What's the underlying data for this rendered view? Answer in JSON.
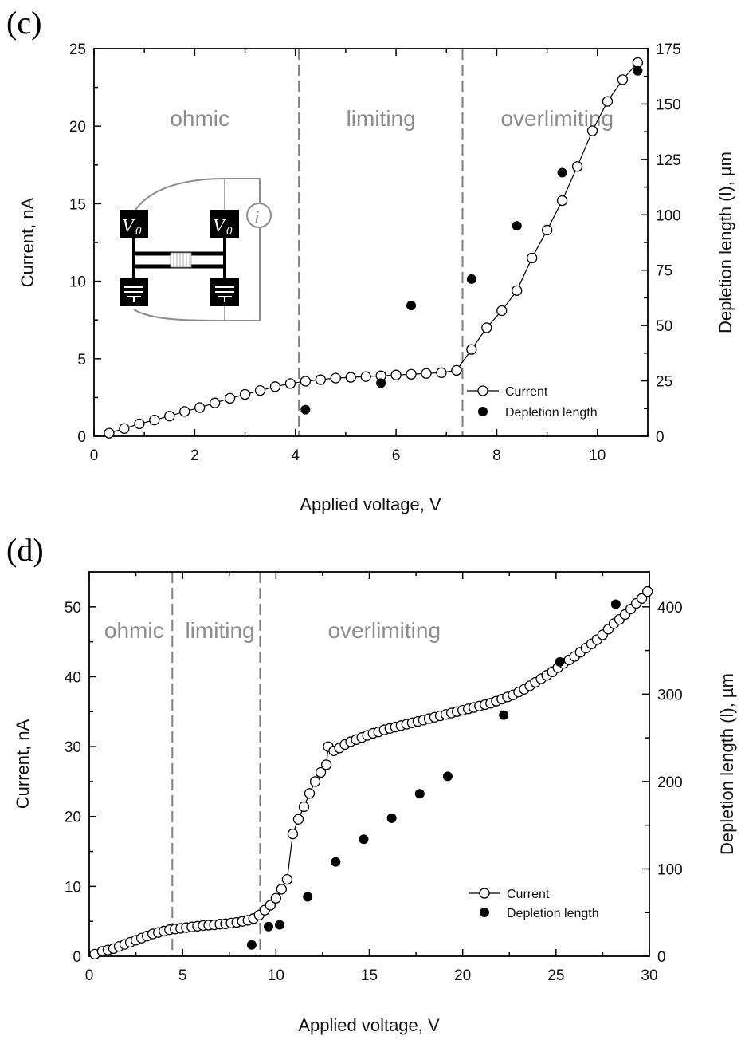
{
  "figure": {
    "panels": [
      "(c)",
      "(d)"
    ]
  },
  "inset": {
    "source_label": "V",
    "source_subscript": "0",
    "meter_label": "i"
  },
  "chart_data": [
    {
      "type": "line",
      "panel": "(c)",
      "xlabel": "Applied voltage, V",
      "ylabel": "Current, nA",
      "y2label": "Depletion length (l), µm",
      "xlim": [
        0,
        11
      ],
      "ylim": [
        0,
        25
      ],
      "y2lim": [
        0,
        175
      ],
      "xticks": [
        0,
        2,
        4,
        6,
        8,
        10
      ],
      "yticks": [
        0,
        5,
        10,
        15,
        20,
        25
      ],
      "y2ticks": [
        0,
        25,
        50,
        75,
        100,
        125,
        150,
        175
      ],
      "grid": false,
      "legend_position": "bottom-right",
      "regions": [
        {
          "label": "ohmic",
          "x": 2.1
        },
        {
          "label": "limiting",
          "x": 5.7
        },
        {
          "label": "overlimiting",
          "x": 9.2
        }
      ],
      "dividers": [
        4.07,
        7.32
      ],
      "series": [
        {
          "name": "Current",
          "axis": "left",
          "style": "open-circle-line",
          "x": [
            0.3,
            0.6,
            0.9,
            1.2,
            1.5,
            1.8,
            2.1,
            2.4,
            2.7,
            3.0,
            3.3,
            3.6,
            3.9,
            4.2,
            4.5,
            4.8,
            5.1,
            5.4,
            5.7,
            6.0,
            6.3,
            6.6,
            6.9,
            7.2,
            7.5,
            7.8,
            8.1,
            8.4,
            8.7,
            9.0,
            9.3,
            9.6,
            9.9,
            10.2,
            10.5,
            10.8
          ],
          "y": [
            0.2,
            0.5,
            0.8,
            1.05,
            1.3,
            1.6,
            1.85,
            2.15,
            2.45,
            2.7,
            2.95,
            3.2,
            3.4,
            3.55,
            3.65,
            3.75,
            3.8,
            3.85,
            3.9,
            3.95,
            4.0,
            4.05,
            4.1,
            4.25,
            5.6,
            7.0,
            8.1,
            9.4,
            11.5,
            13.3,
            15.2,
            17.4,
            19.7,
            21.6,
            23.0,
            24.1
          ]
        },
        {
          "name": "Depletion length",
          "axis": "right",
          "style": "filled-circle",
          "x": [
            4.2,
            5.7,
            6.3,
            7.5,
            8.4,
            9.3,
            10.8
          ],
          "y": [
            12,
            24,
            59,
            71,
            95,
            119,
            165
          ]
        }
      ]
    },
    {
      "type": "line",
      "panel": "(d)",
      "xlabel": "Applied voltage, V",
      "ylabel": "Current, nA",
      "y2label": "Depletion length (l), µm",
      "xlim": [
        0,
        30
      ],
      "ylim": [
        0,
        55
      ],
      "y2lim": [
        0,
        440
      ],
      "xticks": [
        0,
        5,
        10,
        15,
        20,
        25,
        30
      ],
      "yticks": [
        0,
        10,
        20,
        30,
        40,
        50
      ],
      "y2ticks": [
        0,
        100,
        200,
        300,
        400
      ],
      "grid": false,
      "legend_position": "bottom-right",
      "regions": [
        {
          "label": "ohmic",
          "x": 2.4
        },
        {
          "label": "limiting",
          "x": 7.0
        },
        {
          "label": "overlimiting",
          "x": 15.8
        }
      ],
      "dividers": [
        4.45,
        9.15
      ],
      "series": [
        {
          "name": "Current",
          "axis": "left",
          "style": "open-circle-line",
          "x": [
            0.3,
            0.7,
            1.0,
            1.3,
            1.6,
            1.9,
            2.2,
            2.5,
            2.8,
            3.1,
            3.4,
            3.7,
            4.0,
            4.3,
            4.6,
            4.9,
            5.2,
            5.5,
            5.8,
            6.1,
            6.4,
            6.7,
            7.0,
            7.3,
            7.6,
            7.9,
            8.2,
            8.5,
            8.8,
            9.1,
            9.4,
            9.7,
            10.0,
            10.3,
            10.6,
            10.9,
            11.2,
            11.5,
            11.8,
            12.1,
            12.4,
            12.7,
            12.8,
            13.1,
            13.4,
            13.7,
            14.0,
            14.3,
            14.6,
            14.9,
            15.2,
            15.5,
            15.8,
            16.1,
            16.4,
            16.7,
            17.0,
            17.3,
            17.6,
            17.9,
            18.2,
            18.5,
            18.8,
            19.1,
            19.4,
            19.7,
            20.0,
            20.3,
            20.6,
            20.9,
            21.2,
            21.5,
            21.8,
            22.1,
            22.4,
            22.7,
            23.0,
            23.3,
            23.6,
            23.9,
            24.2,
            24.5,
            24.8,
            25.1,
            25.4,
            25.7,
            26.0,
            26.3,
            26.6,
            26.9,
            27.2,
            27.5,
            27.8,
            28.1,
            28.4,
            28.7,
            29.0,
            29.3,
            29.6,
            29.9
          ],
          "y": [
            0.3,
            0.7,
            0.9,
            1.1,
            1.4,
            1.7,
            2.0,
            2.3,
            2.6,
            2.9,
            3.2,
            3.4,
            3.6,
            3.8,
            3.9,
            4.0,
            4.1,
            4.2,
            4.3,
            4.4,
            4.45,
            4.5,
            4.6,
            4.65,
            4.75,
            4.85,
            5.0,
            5.15,
            5.4,
            5.9,
            6.6,
            7.3,
            8.3,
            9.6,
            11.0,
            17.5,
            19.6,
            21.4,
            23.3,
            25.0,
            26.3,
            27.4,
            30.0,
            29.4,
            29.8,
            30.3,
            30.7,
            31.0,
            31.3,
            31.6,
            31.9,
            32.1,
            32.4,
            32.6,
            32.8,
            33.0,
            33.2,
            33.4,
            33.6,
            33.8,
            34.0,
            34.2,
            34.4,
            34.6,
            34.8,
            35.0,
            35.2,
            35.4,
            35.6,
            35.8,
            36.0,
            36.2,
            36.5,
            36.8,
            37.1,
            37.4,
            37.8,
            38.2,
            38.7,
            39.2,
            39.7,
            40.2,
            40.7,
            41.3,
            41.9,
            42.4,
            42.9,
            43.5,
            44.1,
            44.7,
            45.3,
            46.0,
            46.8,
            47.6,
            48.2,
            48.9,
            49.7,
            50.5,
            51.2,
            52.2
          ]
        },
        {
          "name": "Depletion length",
          "axis": "right",
          "style": "filled-circle",
          "x": [
            8.7,
            9.6,
            10.2,
            11.7,
            13.2,
            14.7,
            16.2,
            17.7,
            19.2,
            22.2,
            25.2,
            28.2
          ],
          "y": [
            13,
            34,
            36,
            68,
            108,
            134,
            158,
            186,
            206,
            276,
            337,
            403
          ]
        }
      ]
    }
  ]
}
